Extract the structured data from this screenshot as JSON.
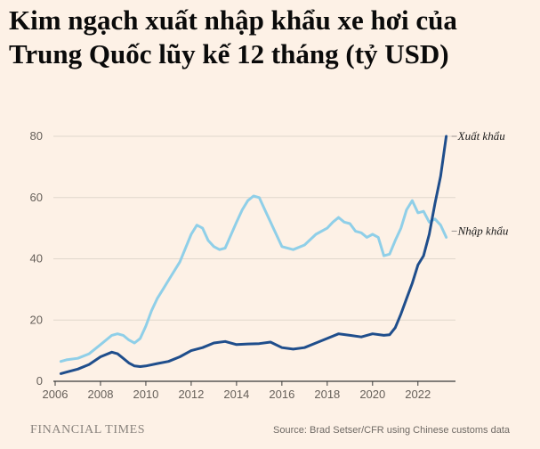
{
  "chart_data": {
    "type": "line",
    "title_lines": [
      "Kim ngạch xuất nhập khẩu xe hơi của",
      "Trung Quốc lũy kế 12 tháng (tỷ USD)"
    ],
    "xlabel": "",
    "ylabel": "",
    "xlim": [
      2006,
      2023.5
    ],
    "ylim": [
      0,
      80
    ],
    "x_ticks": [
      2006,
      2008,
      2010,
      2012,
      2014,
      2016,
      2018,
      2020,
      2022
    ],
    "x_tick_labels": [
      "2006",
      "2008",
      "2010",
      "2012",
      "2014",
      "2016",
      "2018",
      "2020",
      "2022"
    ],
    "y_ticks": [
      0,
      20,
      40,
      60,
      80
    ],
    "y_tick_labels": [
      "0",
      "20",
      "40",
      "60",
      "80"
    ],
    "grid": "horizontal",
    "legend": "inline labels at right end of lines",
    "series": [
      {
        "name": "Xuất khẩu",
        "color": "#1f4e8c",
        "x": [
          2006.25,
          2006.5,
          2007.0,
          2007.5,
          2008.0,
          2008.5,
          2008.75,
          2009.0,
          2009.25,
          2009.5,
          2009.75,
          2010.0,
          2010.5,
          2011.0,
          2011.5,
          2012.0,
          2012.5,
          2013.0,
          2013.5,
          2014.0,
          2014.5,
          2015.0,
          2015.5,
          2016.0,
          2016.5,
          2017.0,
          2017.5,
          2018.0,
          2018.5,
          2019.0,
          2019.5,
          2020.0,
          2020.5,
          2020.75,
          2021.0,
          2021.25,
          2021.5,
          2021.75,
          2022.0,
          2022.25,
          2022.5,
          2022.75,
          2023.0,
          2023.25
        ],
        "values": [
          2.5,
          3.0,
          4.0,
          5.5,
          8.0,
          9.5,
          9.0,
          7.5,
          6.0,
          5.0,
          4.8,
          5.0,
          5.8,
          6.5,
          8.0,
          10.0,
          11.0,
          12.5,
          13.0,
          12.0,
          12.2,
          12.3,
          12.8,
          11.0,
          10.5,
          11.0,
          12.5,
          14.0,
          15.5,
          15.0,
          14.5,
          15.5,
          15.0,
          15.2,
          17.5,
          22.0,
          27.0,
          32.0,
          38.0,
          41.0,
          48.0,
          58.0,
          67.0,
          80.0
        ]
      },
      {
        "name": "Nhập khẩu",
        "color": "#8fcfe8",
        "x": [
          2006.25,
          2006.5,
          2007.0,
          2007.5,
          2008.0,
          2008.5,
          2008.75,
          2009.0,
          2009.25,
          2009.5,
          2009.75,
          2010.0,
          2010.25,
          2010.5,
          2010.75,
          2011.0,
          2011.5,
          2012.0,
          2012.25,
          2012.5,
          2012.75,
          2013.0,
          2013.25,
          2013.5,
          2014.0,
          2014.25,
          2014.5,
          2014.75,
          2015.0,
          2015.25,
          2015.5,
          2016.0,
          2016.5,
          2017.0,
          2017.5,
          2018.0,
          2018.25,
          2018.5,
          2018.75,
          2019.0,
          2019.25,
          2019.5,
          2019.75,
          2020.0,
          2020.25,
          2020.5,
          2020.75,
          2021.0,
          2021.25,
          2021.5,
          2021.75,
          2022.0,
          2022.25,
          2022.5,
          2022.75,
          2023.0,
          2023.25
        ],
        "values": [
          6.5,
          7.0,
          7.5,
          9.0,
          12.0,
          15.0,
          15.5,
          15.0,
          13.5,
          12.5,
          14.0,
          18.0,
          23.0,
          27.0,
          30.0,
          33.0,
          39.0,
          48.0,
          51.0,
          50.0,
          46.0,
          44.0,
          43.0,
          43.5,
          52.0,
          56.0,
          59.0,
          60.5,
          60.0,
          56.0,
          52.0,
          44.0,
          43.0,
          44.5,
          48.0,
          50.0,
          52.0,
          53.5,
          52.0,
          51.5,
          49.0,
          48.5,
          47.0,
          48.0,
          47.0,
          41.0,
          41.5,
          46.0,
          50.0,
          56.0,
          59.0,
          55.0,
          55.5,
          52.0,
          53.0,
          51.0,
          47.0
        ]
      }
    ]
  },
  "footer": {
    "brand": "FINANCIAL TIMES",
    "source": "Source: Brad Setser/CFR using Chinese customs data"
  }
}
